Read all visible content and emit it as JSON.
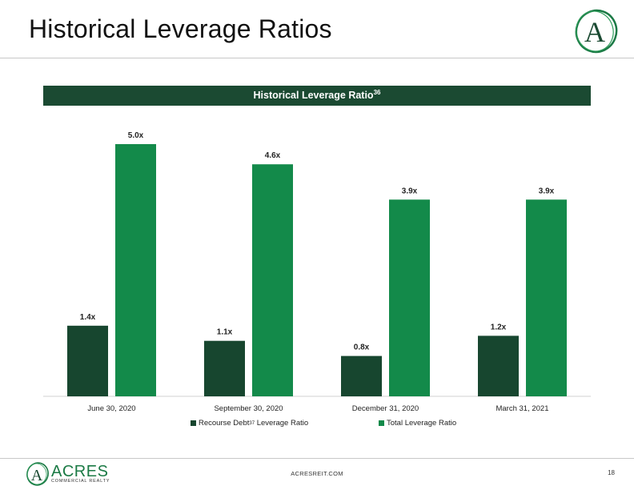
{
  "slide": {
    "title": "Historical Leverage Ratios",
    "chart_heading": "Historical Leverage Ratio",
    "chart_heading_sup": "36",
    "footer_url": "ACRESREIT.COM",
    "page_number": "18",
    "logo_text": "ACRES",
    "logo_subtext": "COMMERCIAL REALTY",
    "logo_letter": "A"
  },
  "legend": {
    "recourse_label": "Recourse Debt",
    "recourse_sup": "37",
    "recourse_suffix": " Leverage Ratio",
    "total_label": "Total Leverage Ratio"
  },
  "colors": {
    "dark_green": "#17462f",
    "bright_green": "#138a4a",
    "banner": "#1b4a32"
  },
  "chart_data": {
    "type": "bar",
    "categories": [
      "June 30, 2020",
      "September 30, 2020",
      "December 31, 2020",
      "March 31, 2021"
    ],
    "series": [
      {
        "name": "Recourse Debt37 Leverage Ratio",
        "values": [
          1.4,
          1.1,
          0.8,
          1.2
        ],
        "labels": [
          "1.4x",
          "1.1x",
          "0.8x",
          "1.2x"
        ],
        "color": "#17462f"
      },
      {
        "name": "Total Leverage Ratio",
        "values": [
          5.0,
          4.6,
          3.9,
          3.9
        ],
        "labels": [
          "5.0x",
          "4.6x",
          "3.9x",
          "3.9x"
        ],
        "color": "#138a4a"
      }
    ],
    "ylim": [
      0,
      5.0
    ],
    "grid": false,
    "legend": "bottom"
  }
}
